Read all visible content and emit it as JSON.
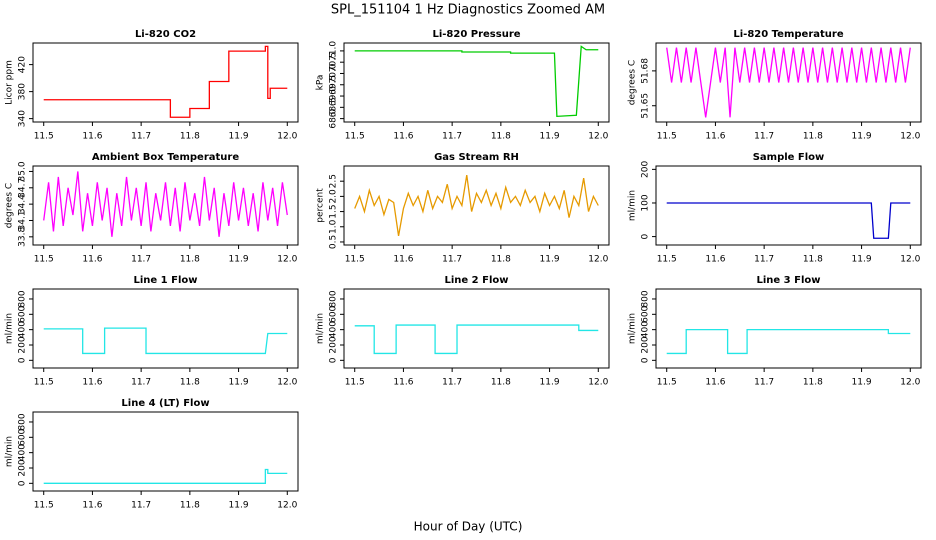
{
  "title": "SPL_151104  1 Hz Diagnostics Zoomed AM",
  "x_label": "Hour of Day (UTC)",
  "chart_data": [
    {
      "type": "line",
      "title": "Li-820 CO2",
      "y_label": "Licor ppm",
      "color": "#ff0000",
      "x": [
        11.5,
        11.76,
        11.76,
        11.8,
        11.8,
        11.84,
        11.84,
        11.88,
        11.88,
        11.955,
        11.955,
        11.96,
        11.96,
        11.965,
        11.965,
        12
      ],
      "values": [
        368,
        368,
        342,
        342,
        355,
        355,
        395,
        395,
        440,
        440,
        447,
        447,
        370,
        370,
        385,
        385
      ],
      "xlim": [
        11.478,
        12.022
      ],
      "ylim": [
        335,
        452
      ],
      "xticks": [
        11.5,
        11.6,
        11.7,
        11.8,
        11.9,
        {
          "value": 12,
          "label": "12.0"
        }
      ],
      "yticks": [
        340,
        380,
        420
      ]
    },
    {
      "type": "line",
      "title": "Li-820 Pressure",
      "y_label": "kPa",
      "color": "#00cc00",
      "x": [
        11.5,
        11.72,
        11.72,
        11.82,
        11.82,
        11.91,
        11.915,
        11.955,
        11.965,
        11.975,
        12
      ],
      "values": [
        71.0,
        71.0,
        70.95,
        70.95,
        70.9,
        70.9,
        68.1,
        68.15,
        71.2,
        71.05,
        71.05
      ],
      "xlim": [
        11.478,
        12.022
      ],
      "ylim": [
        67.85,
        71.35
      ],
      "xticks": [
        11.5,
        11.6,
        11.7,
        11.8,
        11.9,
        {
          "value": 12,
          "label": "12.0"
        }
      ],
      "yticks": [
        {
          "value": 68,
          "label": "68.0"
        },
        68.5,
        {
          "value": 69,
          "label": "69.0"
        },
        69.5,
        {
          "value": 70,
          "label": "70.0"
        },
        70.5,
        {
          "value": 71,
          "label": "71.0"
        }
      ]
    },
    {
      "type": "line",
      "title": "Li-820 Temperature",
      "y_label": "degrees C",
      "color": "#ff00ff",
      "x": [
        11.5,
        11.51,
        11.52,
        11.53,
        11.54,
        11.55,
        11.56,
        11.57,
        11.58,
        11.59,
        11.6,
        11.61,
        11.62,
        11.63,
        11.64,
        11.65,
        11.66,
        11.67,
        11.68,
        11.69,
        11.7,
        11.71,
        11.72,
        11.73,
        11.74,
        11.75,
        11.76,
        11.77,
        11.78,
        11.79,
        11.8,
        11.81,
        11.82,
        11.83,
        11.84,
        11.85,
        11.86,
        11.87,
        11.88,
        11.89,
        11.9,
        11.91,
        11.92,
        11.93,
        11.94,
        11.95,
        11.96,
        11.97,
        11.98,
        11.99,
        12
      ],
      "values": [
        51.7,
        51.67,
        51.7,
        51.67,
        51.7,
        51.67,
        51.7,
        51.67,
        51.64,
        51.67,
        51.7,
        51.67,
        51.7,
        51.64,
        51.7,
        51.67,
        51.7,
        51.67,
        51.7,
        51.67,
        51.7,
        51.67,
        51.7,
        51.67,
        51.7,
        51.67,
        51.7,
        51.67,
        51.7,
        51.67,
        51.7,
        51.67,
        51.7,
        51.67,
        51.7,
        51.67,
        51.7,
        51.67,
        51.7,
        51.67,
        51.7,
        51.67,
        51.7,
        51.67,
        51.7,
        51.67,
        51.7,
        51.67,
        51.7,
        51.67,
        51.7
      ],
      "xlim": [
        11.478,
        12.022
      ],
      "ylim": [
        51.636,
        51.704
      ],
      "xticks": [
        11.5,
        11.6,
        11.7,
        11.8,
        11.9,
        {
          "value": 12,
          "label": "12.0"
        }
      ],
      "yticks": [
        51.65,
        51.68
      ]
    },
    {
      "type": "line",
      "title": "Ambient Box Temperature",
      "y_label": "degrees C",
      "color": "#ff00ff",
      "x": [
        11.5,
        11.51,
        11.52,
        11.53,
        11.54,
        11.55,
        11.56,
        11.57,
        11.58,
        11.59,
        11.6,
        11.61,
        11.62,
        11.63,
        11.64,
        11.65,
        11.66,
        11.67,
        11.68,
        11.69,
        11.7,
        11.71,
        11.72,
        11.73,
        11.74,
        11.75,
        11.76,
        11.77,
        11.78,
        11.79,
        11.8,
        11.81,
        11.82,
        11.83,
        11.84,
        11.85,
        11.86,
        11.87,
        11.88,
        11.89,
        11.9,
        11.91,
        11.92,
        11.93,
        11.94,
        11.95,
        11.96,
        11.97,
        11.98,
        11.99,
        12
      ],
      "values": [
        34.1,
        34.8,
        33.9,
        34.9,
        34.0,
        34.7,
        34.2,
        35.0,
        33.9,
        34.6,
        34.0,
        34.8,
        34.1,
        34.7,
        33.8,
        34.6,
        34.0,
        34.9,
        34.1,
        34.7,
        34.0,
        34.8,
        33.9,
        34.6,
        34.1,
        34.8,
        34.0,
        34.7,
        33.9,
        34.8,
        34.1,
        34.6,
        34.0,
        34.9,
        34.1,
        34.7,
        33.8,
        34.6,
        34.0,
        34.8,
        34.1,
        34.7,
        34.0,
        34.6,
        33.9,
        34.8,
        34.1,
        34.7,
        34.0,
        34.8,
        34.2
      ],
      "xlim": [
        11.478,
        12.022
      ],
      "ylim": [
        33.65,
        35.1
      ],
      "xticks": [
        11.5,
        11.6,
        11.7,
        11.8,
        11.9,
        {
          "value": 12,
          "label": "12.0"
        }
      ],
      "yticks": [
        33.8,
        34.1,
        34.4,
        34.7,
        {
          "value": 35,
          "label": "35.0"
        }
      ]
    },
    {
      "type": "line",
      "title": "Gas Stream RH",
      "y_label": "percent",
      "color": "#e69a00",
      "x": [
        11.5,
        11.51,
        11.52,
        11.53,
        11.54,
        11.55,
        11.56,
        11.57,
        11.58,
        11.59,
        11.6,
        11.61,
        11.62,
        11.63,
        11.64,
        11.65,
        11.66,
        11.67,
        11.68,
        11.69,
        11.7,
        11.71,
        11.72,
        11.73,
        11.74,
        11.75,
        11.76,
        11.77,
        11.78,
        11.79,
        11.8,
        11.81,
        11.82,
        11.83,
        11.84,
        11.85,
        11.86,
        11.87,
        11.88,
        11.89,
        11.9,
        11.91,
        11.92,
        11.93,
        11.94,
        11.95,
        11.96,
        11.97,
        11.98,
        11.99,
        12
      ],
      "values": [
        1.6,
        2.0,
        1.5,
        2.2,
        1.7,
        2.0,
        1.4,
        1.9,
        1.8,
        0.7,
        1.6,
        2.1,
        1.7,
        2.0,
        1.5,
        2.2,
        1.6,
        2.0,
        1.8,
        2.4,
        1.6,
        2.0,
        1.7,
        2.7,
        1.5,
        2.1,
        1.8,
        2.2,
        1.7,
        2.1,
        1.6,
        2.3,
        1.8,
        2.0,
        1.7,
        2.2,
        1.8,
        2.0,
        1.5,
        2.1,
        1.7,
        2.0,
        1.6,
        2.2,
        1.3,
        2.0,
        1.7,
        2.6,
        1.5,
        2.0,
        1.7
      ],
      "xlim": [
        11.478,
        12.022
      ],
      "ylim": [
        0.4,
        3.0
      ],
      "xticks": [
        11.5,
        11.6,
        11.7,
        11.8,
        11.9,
        {
          "value": 12,
          "label": "12.0"
        }
      ],
      "yticks": [
        0.5,
        {
          "value": 1,
          "label": "1.0"
        },
        1.5,
        {
          "value": 2,
          "label": "2.0"
        },
        2.5
      ]
    },
    {
      "type": "line",
      "title": "Sample Flow",
      "y_label": "ml/min",
      "color": "#0000cc",
      "x": [
        11.5,
        11.92,
        11.925,
        11.955,
        11.96,
        12
      ],
      "values": [
        100,
        100,
        -5,
        -5,
        100,
        100
      ],
      "xlim": [
        11.478,
        12.022
      ],
      "ylim": [
        -25,
        210
      ],
      "xticks": [
        11.5,
        11.6,
        11.7,
        11.8,
        11.9,
        {
          "value": 12,
          "label": "12.0"
        }
      ],
      "yticks": [
        0,
        100,
        200
      ]
    },
    {
      "type": "line",
      "title": "Line 1 Flow",
      "y_label": "ml/min",
      "color": "#22e6e6",
      "x": [
        11.5,
        11.58,
        11.58,
        11.625,
        11.625,
        11.71,
        11.71,
        11.955,
        11.96,
        12
      ],
      "values": [
        410,
        410,
        90,
        90,
        420,
        420,
        90,
        90,
        350,
        350
      ],
      "xlim": [
        11.478,
        12.022
      ],
      "ylim": [
        -100,
        930
      ],
      "xticks": [
        11.5,
        11.6,
        11.7,
        11.8,
        11.9,
        {
          "value": 12,
          "label": "12.0"
        }
      ],
      "yticks": [
        0,
        200,
        400,
        600,
        800
      ]
    },
    {
      "type": "line",
      "title": "Line 2 Flow",
      "y_label": "ml/min",
      "color": "#22e6e6",
      "x": [
        11.5,
        11.54,
        11.54,
        11.585,
        11.585,
        11.665,
        11.665,
        11.71,
        11.71,
        11.96,
        11.96,
        12
      ],
      "values": [
        450,
        450,
        90,
        90,
        460,
        460,
        90,
        90,
        460,
        460,
        390,
        390
      ],
      "xlim": [
        11.478,
        12.022
      ],
      "ylim": [
        -100,
        930
      ],
      "xticks": [
        11.5,
        11.6,
        11.7,
        11.8,
        11.9,
        {
          "value": 12,
          "label": "12.0"
        }
      ],
      "yticks": [
        0,
        200,
        400,
        600,
        800
      ]
    },
    {
      "type": "line",
      "title": "Line 3 Flow",
      "y_label": "ml/min",
      "color": "#22e6e6",
      "x": [
        11.5,
        11.54,
        11.54,
        11.625,
        11.625,
        11.665,
        11.665,
        11.955,
        11.955,
        12
      ],
      "values": [
        90,
        90,
        400,
        400,
        90,
        90,
        400,
        400,
        350,
        350
      ],
      "xlim": [
        11.478,
        12.022
      ],
      "ylim": [
        -100,
        930
      ],
      "xticks": [
        11.5,
        11.6,
        11.7,
        11.8,
        11.9,
        {
          "value": 12,
          "label": "12.0"
        }
      ],
      "yticks": [
        0,
        200,
        400,
        600,
        800
      ]
    },
    {
      "type": "line",
      "title": "Line 4 (LT) Flow",
      "y_label": "ml/min",
      "color": "#22e6e6",
      "x": [
        11.5,
        11.955,
        11.955,
        11.96,
        11.96,
        12
      ],
      "values": [
        0,
        0,
        180,
        180,
        130,
        130
      ],
      "xlim": [
        11.478,
        12.022
      ],
      "ylim": [
        -100,
        930
      ],
      "xticks": [
        11.5,
        11.6,
        11.7,
        11.8,
        11.9,
        {
          "value": 12,
          "label": "12.0"
        }
      ],
      "yticks": [
        0,
        200,
        400,
        600,
        800
      ]
    }
  ]
}
